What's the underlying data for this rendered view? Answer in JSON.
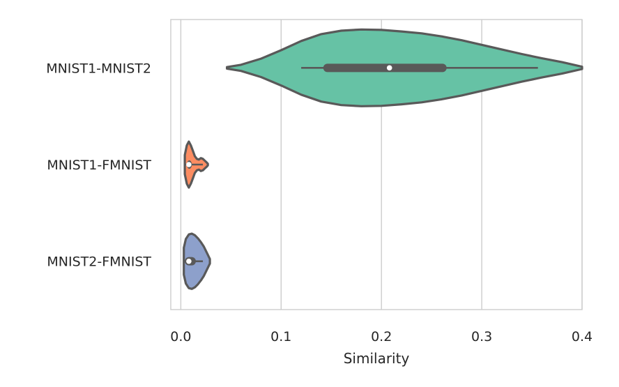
{
  "chart_data": {
    "type": "violin",
    "orientation": "horizontal",
    "title": "",
    "xlabel": "Similarity",
    "ylabel": "",
    "xlim": [
      -0.01,
      0.4
    ],
    "xticks": [
      0.0,
      0.1,
      0.2,
      0.3,
      0.4
    ],
    "xtick_labels": [
      "0.0",
      "0.1",
      "0.2",
      "0.3",
      "0.4"
    ],
    "grid": "vertical",
    "categories": [
      "MNIST1-MNIST2",
      "MNIST1-FMNIST",
      "MNIST2-FMNIST"
    ],
    "series": [
      {
        "name": "MNIST1-MNIST2",
        "color": "#66c2a5",
        "median": 0.208,
        "q1": 0.142,
        "q3": 0.265,
        "whisker_low": 0.12,
        "whisker_high": 0.356,
        "kde_min": 0.046,
        "kde_max": 0.4,
        "density": [
          [
            0.046,
            0.02
          ],
          [
            0.06,
            0.08
          ],
          [
            0.08,
            0.24
          ],
          [
            0.1,
            0.46
          ],
          [
            0.12,
            0.7
          ],
          [
            0.14,
            0.88
          ],
          [
            0.16,
            0.97
          ],
          [
            0.18,
            1.0
          ],
          [
            0.2,
            0.99
          ],
          [
            0.22,
            0.95
          ],
          [
            0.24,
            0.9
          ],
          [
            0.26,
            0.82
          ],
          [
            0.28,
            0.72
          ],
          [
            0.3,
            0.6
          ],
          [
            0.32,
            0.48
          ],
          [
            0.34,
            0.36
          ],
          [
            0.36,
            0.25
          ],
          [
            0.38,
            0.15
          ],
          [
            0.4,
            0.03
          ]
        ]
      },
      {
        "name": "MNIST1-FMNIST",
        "color": "#fc8d62",
        "median": 0.008,
        "q1": 0.006,
        "q3": 0.011,
        "whisker_low": 0.005,
        "whisker_high": 0.022,
        "kde_min": 0.004,
        "kde_max": 0.027,
        "density": [
          [
            0.004,
            0.25
          ],
          [
            0.006,
            0.5
          ],
          [
            0.008,
            0.6
          ],
          [
            0.01,
            0.5
          ],
          [
            0.012,
            0.36
          ],
          [
            0.014,
            0.22
          ],
          [
            0.016,
            0.15
          ],
          [
            0.018,
            0.13
          ],
          [
            0.02,
            0.17
          ],
          [
            0.022,
            0.15
          ],
          [
            0.024,
            0.1
          ],
          [
            0.026,
            0.05
          ],
          [
            0.027,
            0.02
          ]
        ]
      },
      {
        "name": "MNIST2-FMNIST",
        "color": "#8da0cb",
        "median": 0.008,
        "q1": 0.004,
        "q3": 0.015,
        "whisker_low": 0.003,
        "whisker_high": 0.022,
        "kde_min": 0.003,
        "kde_max": 0.029,
        "density": [
          [
            0.003,
            0.35
          ],
          [
            0.005,
            0.58
          ],
          [
            0.008,
            0.7
          ],
          [
            0.011,
            0.72
          ],
          [
            0.014,
            0.68
          ],
          [
            0.017,
            0.6
          ],
          [
            0.02,
            0.5
          ],
          [
            0.023,
            0.38
          ],
          [
            0.026,
            0.22
          ],
          [
            0.029,
            0.06
          ]
        ]
      }
    ]
  }
}
